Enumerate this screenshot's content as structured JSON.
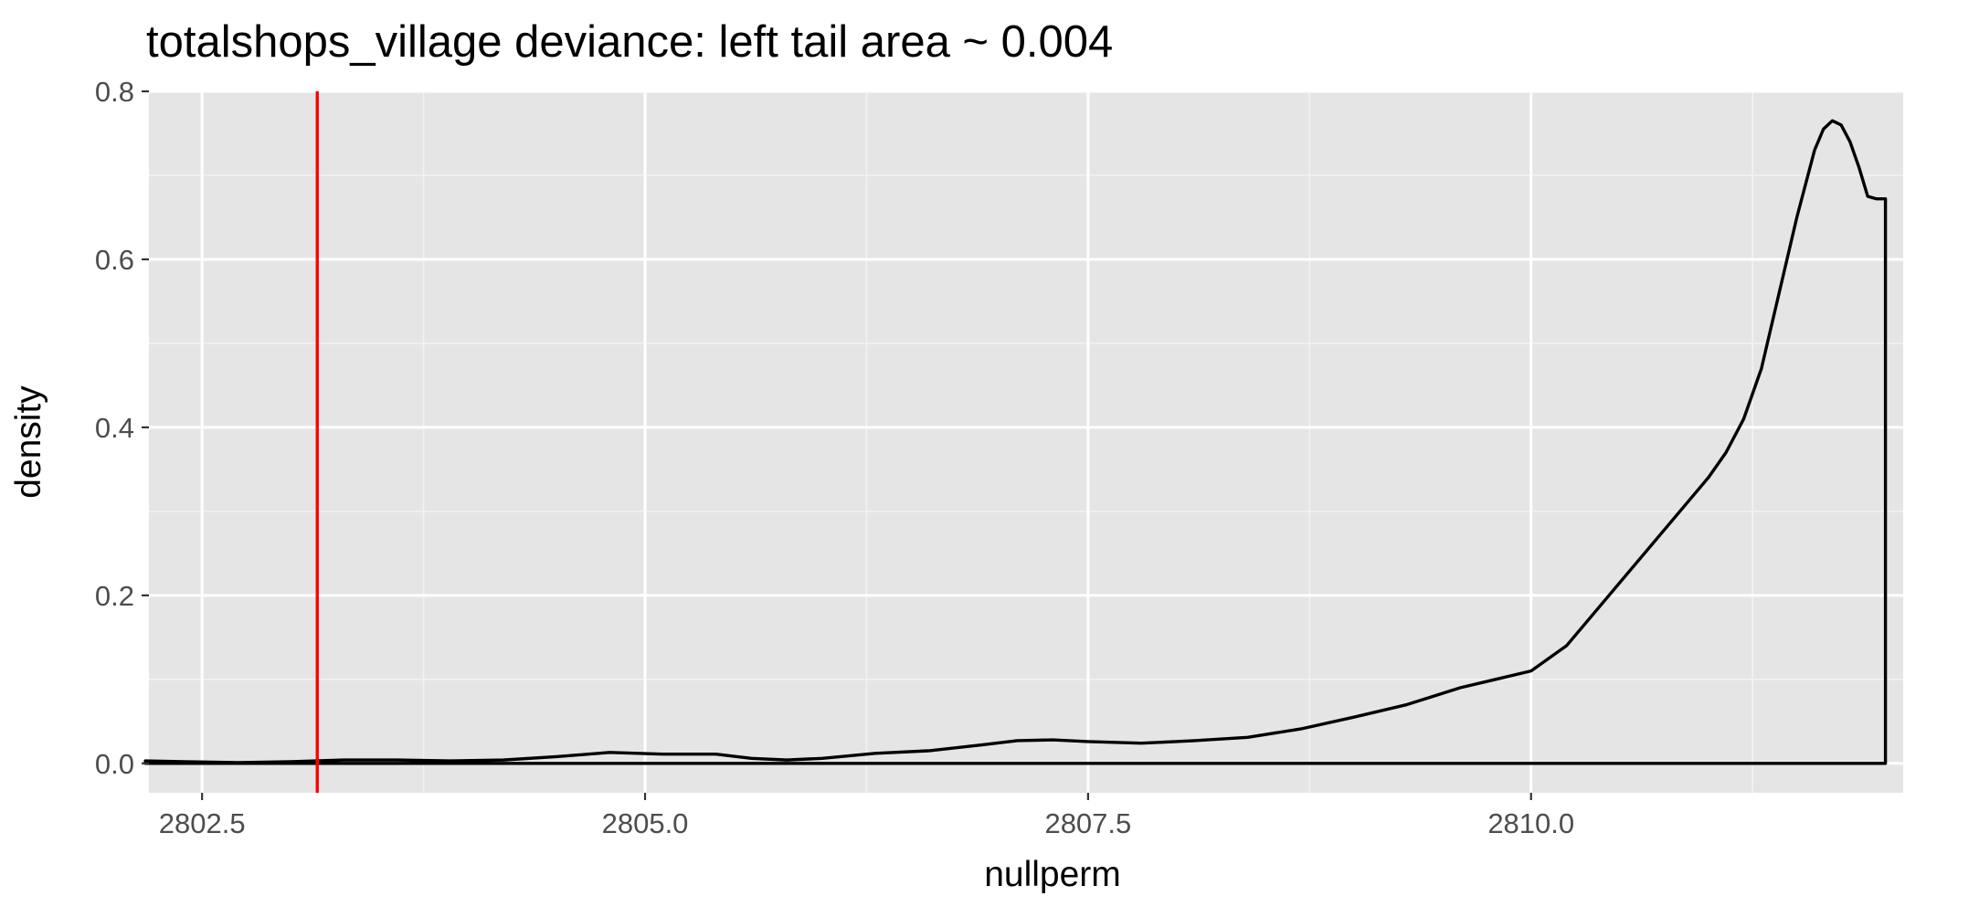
{
  "chart_data": {
    "type": "area",
    "title": "totalshops_village deviance: left tail area ~ 0.004",
    "xlabel": "nullperm",
    "ylabel": "density",
    "xlim": [
      2802.2,
      2812.1
    ],
    "ylim": [
      -0.035,
      0.8
    ],
    "x_ticks": [
      2802.5,
      2805.0,
      2807.5,
      2810.0
    ],
    "x_tick_labels": [
      "2802.5",
      "2805.0",
      "2807.5",
      "2810.0"
    ],
    "y_ticks": [
      0.0,
      0.2,
      0.4,
      0.6,
      0.8
    ],
    "y_tick_labels": [
      "0.0",
      "0.2",
      "0.4",
      "0.6",
      "0.8"
    ],
    "x_minor": [
      2803.75,
      2806.25,
      2808.75,
      2811.25
    ],
    "y_minor": [
      0.1,
      0.3,
      0.5,
      0.7
    ],
    "grid": true,
    "observed_line": {
      "x": 2803.15,
      "color": "#ff0000"
    },
    "series": [
      {
        "color": "#000000",
        "x": [
          2802.18,
          2802.4,
          2802.7,
          2803.0,
          2803.3,
          2803.6,
          2803.9,
          2804.2,
          2804.5,
          2804.8,
          2805.1,
          2805.4,
          2805.6,
          2805.8,
          2806.0,
          2806.3,
          2806.6,
          2806.9,
          2807.1,
          2807.3,
          2807.5,
          2807.8,
          2808.1,
          2808.4,
          2808.7,
          2809.0,
          2809.3,
          2809.6,
          2809.8,
          2810.0,
          2810.2,
          2810.4,
          2810.6,
          2810.8,
          2811.0,
          2811.1,
          2811.2,
          2811.3,
          2811.4,
          2811.5,
          2811.55,
          2811.6,
          2811.65,
          2811.7,
          2811.75,
          2811.8,
          2811.85,
          2811.9,
          2811.95,
          2812.0
        ],
        "y": [
          0.003,
          0.002,
          0.001,
          0.002,
          0.004,
          0.004,
          0.003,
          0.004,
          0.008,
          0.013,
          0.011,
          0.011,
          0.006,
          0.004,
          0.006,
          0.012,
          0.015,
          0.022,
          0.027,
          0.028,
          0.026,
          0.024,
          0.027,
          0.031,
          0.041,
          0.055,
          0.07,
          0.09,
          0.1,
          0.11,
          0.14,
          0.19,
          0.24,
          0.29,
          0.34,
          0.37,
          0.41,
          0.47,
          0.56,
          0.65,
          0.69,
          0.73,
          0.755,
          0.765,
          0.76,
          0.74,
          0.71,
          0.675,
          0.672,
          0.672
        ]
      }
    ]
  }
}
